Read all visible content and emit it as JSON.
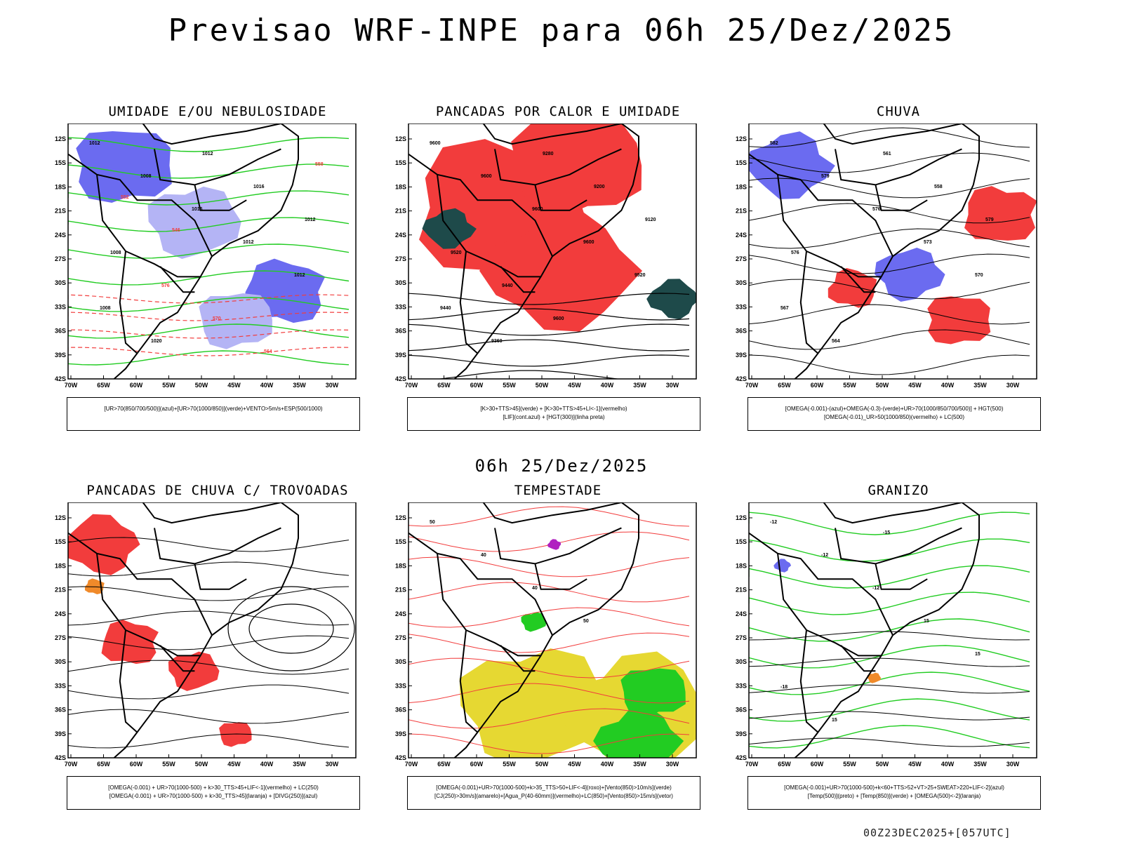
{
  "header": {
    "title": "Previsao WRF-INPE  para 06h 25/Dez/2025",
    "mid_title": "06h 25/Dez/2025",
    "footer": "00Z23DEC2025+[057UTC]"
  },
  "axes": {
    "lat_labels": [
      "12S",
      "15S",
      "18S",
      "21S",
      "24S",
      "27S",
      "30S",
      "33S",
      "36S",
      "39S",
      "42S"
    ],
    "lon_labels": [
      "70W",
      "65W",
      "60W",
      "55W",
      "50W",
      "45W",
      "40W",
      "35W",
      "30W"
    ]
  },
  "colors": {
    "blue_fill": "#6b6bf0",
    "light_blue_fill": "#b4b4f5",
    "green_line": "#22cc22",
    "red_fill": "#f23c3c",
    "dark_teal": "#1e4a4a",
    "yellow_fill": "#e6d832",
    "orange": "#f08a2a",
    "purple": "#b020c0"
  },
  "panels": [
    {
      "id": "umidade",
      "title": "UMIDADE E/OU NEBULOSIDADE",
      "legend": [
        "[UR>70(850/700/500)](azul)+[UR>70(1000/850)](verde)+VENTO>5m/s+ESP(500/1000)"
      ],
      "contour_labels": [
        "1012",
        "1008",
        "1016",
        "1012",
        "1012",
        "1008",
        "1020",
        "1012",
        "1016",
        "1012",
        "1008",
        "576",
        "570",
        "564",
        "558",
        "552",
        "546"
      ]
    },
    {
      "id": "pancadas-calor",
      "title": "PANCADAS POR CALOR E UMIDADE",
      "legend": [
        "[K>30+TTS>45](verde) + [K>30+TTS>45+LI<-1](vermelho)",
        "[LIF](cont.azul) + [HGT(300)](linha preta)"
      ],
      "contour_labels": [
        "9600",
        "9600",
        "9600",
        "9600",
        "9520",
        "9440",
        "9360",
        "9280",
        "9200",
        "9120",
        "9520",
        "9440",
        "9600"
      ]
    },
    {
      "id": "chuva",
      "title": "CHUVA",
      "legend": [
        "[OMEGA(-0.001)-(azul)+OMEGA(-0.3)-(verde)+UR>70(1000/850/700/500)] + HGT(500)",
        "[OMEGA(-0.01)_UR>50(1000/850)(vermelho) + LC(500)"
      ],
      "contour_labels": [
        "582",
        "579",
        "576",
        "573",
        "570",
        "567",
        "564",
        "561",
        "558",
        "579",
        "576"
      ]
    },
    {
      "id": "pancadas-trovoadas",
      "title": "PANCADAS DE CHUVA C/ TROVOADAS",
      "legend": [
        "[OMEGA(-0.001) + UR>70(1000-500) + k>30_TTS>45+LIF<-1](vermelho) + LC(250)",
        "[OMEGA(-0.001) + UR>70(1000-500) + k>30_TTS>45](laranja) + [DIVG(250)](azul)"
      ],
      "contour_labels": []
    },
    {
      "id": "tempestade",
      "title": "TEMPESTADE",
      "legend": [
        "[OMEGA(-0.001)+UR>70(1000-500)+k>35_TTS>50+LIF<-4](roxo)+[Vento(850)>10m/s](verde)",
        "[CJ(250)>30m/s](amarelo)+[Agua_P(40-60mm)](vermelho)+LC(850)+[Vento(850)>15m/s](vetor)"
      ],
      "contour_labels": [
        "50",
        "40",
        "40",
        "50"
      ]
    },
    {
      "id": "granizo",
      "title": "GRANIZO",
      "legend": [
        "[OMEGA(-0.001)+UR>70(1000-500)+k<60+TTS>52+VT>25+SWEAT>220+LIF<-2](azul)",
        "[Temp(500)](preto) + [Temp(850)](verde) + [OMEGA(500)<-2](laranja)"
      ],
      "contour_labels": [
        "-12",
        "-12",
        "-12",
        "15",
        "15",
        "-18",
        "15",
        "-15"
      ]
    }
  ]
}
